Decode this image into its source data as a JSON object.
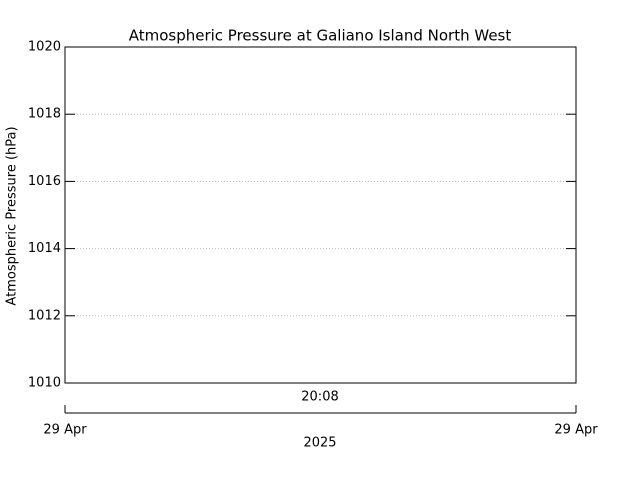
{
  "chart_data": {
    "type": "line",
    "title": "Atmospheric Pressure at Galiano Island North West",
    "ylabel": "Atmospheric Pressure (hPa)",
    "series": [],
    "ylim": [
      1010,
      1020
    ],
    "yticks": [
      1010,
      1012,
      1014,
      1016,
      1018,
      1020
    ],
    "grid": true,
    "x_axis": {
      "time_label": "20:08",
      "date_labels": [
        "29 Apr",
        "29 Apr"
      ],
      "year": "2025"
    }
  }
}
